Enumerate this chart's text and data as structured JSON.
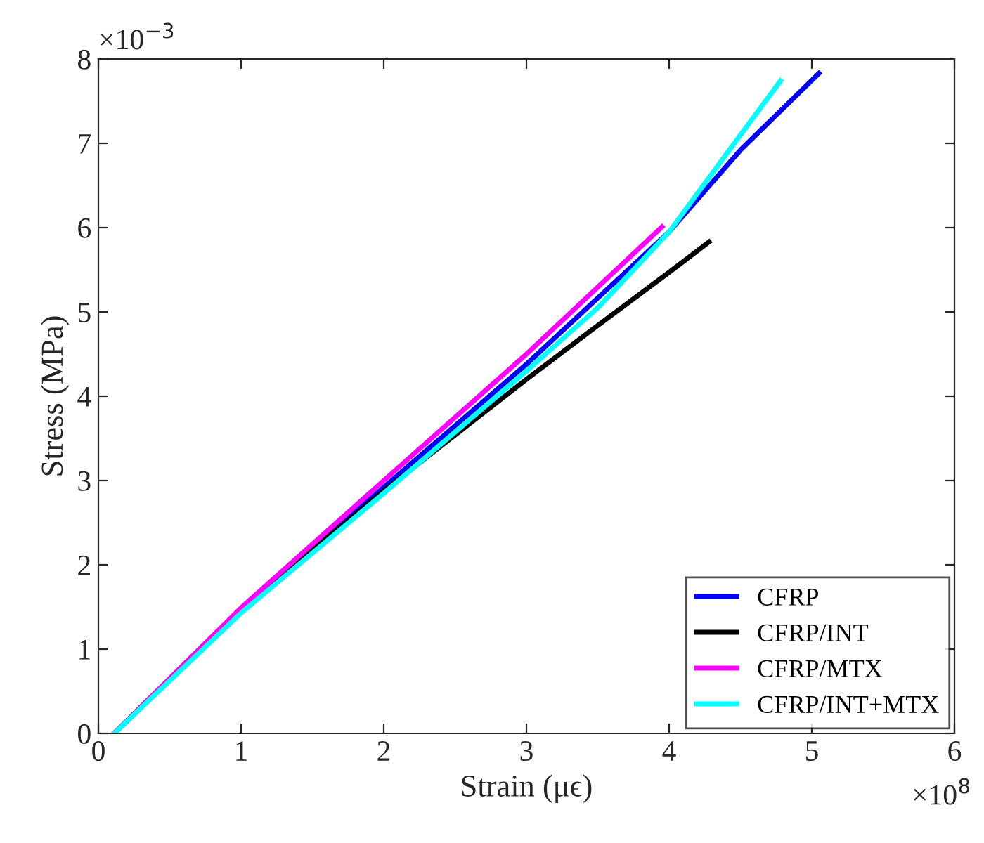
{
  "chart_data": {
    "type": "line",
    "xlabel": "Strain (μϵ)",
    "ylabel": "Stress (MPa)",
    "xlim": [
      0,
      6
    ],
    "ylim": [
      0,
      8
    ],
    "xticks": [
      0,
      1,
      2,
      3,
      4,
      5,
      6
    ],
    "yticks": [
      0,
      1,
      2,
      3,
      4,
      5,
      6,
      7,
      8
    ],
    "annotations": [
      "×10$^{8}$",
      "×10$^{−3}$"
    ],
    "grid": false,
    "legend": "bottom right",
    "marker": "none",
    "line_style": "solid",
    "series": [
      {
        "name": "CFRP",
        "color": "#0000ff",
        "x": [
          0.11,
          1,
          2,
          3,
          4,
          4.5,
          5.05
        ],
        "values": [
          0,
          1.46,
          2.92,
          4.38,
          5.95,
          6.92,
          7.83
        ]
      },
      {
        "name": "CFRP/INT",
        "color": "#000000",
        "x": [
          0.11,
          1,
          2,
          3,
          3.5,
          4,
          4.28
        ],
        "values": [
          0,
          1.48,
          2.88,
          4.2,
          4.84,
          5.47,
          5.83
        ]
      },
      {
        "name": "CFRP/MTX",
        "color": "#ff00ff",
        "x": [
          0.11,
          1,
          2,
          3,
          3.95
        ],
        "values": [
          0,
          1.49,
          3.0,
          4.5,
          6.01
        ]
      },
      {
        "name": "CFRP/INT+MTX",
        "color": "#00ffff",
        "x": [
          0.11,
          1,
          2,
          3,
          3.5,
          4,
          4.5,
          4.78
        ],
        "values": [
          0,
          1.43,
          2.85,
          4.3,
          5.05,
          5.95,
          7.1,
          7.74
        ]
      }
    ]
  }
}
